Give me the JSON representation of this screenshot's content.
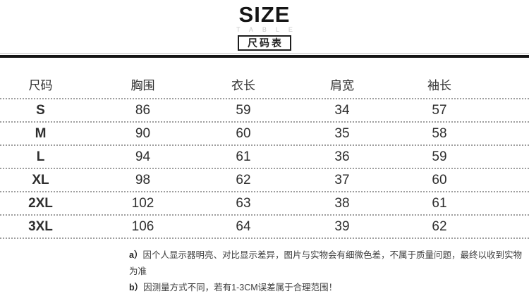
{
  "header": {
    "title": "SIZE",
    "subtitle": "TABLE",
    "badge": "尺码表"
  },
  "table": {
    "columns": [
      "尺码",
      "胸围",
      "衣长",
      "肩宽",
      "袖长"
    ],
    "rows": [
      [
        "S",
        "86",
        "59",
        "34",
        "57"
      ],
      [
        "M",
        "90",
        "60",
        "35",
        "58"
      ],
      [
        "L",
        "94",
        "61",
        "36",
        "59"
      ],
      [
        "XL",
        "98",
        "62",
        "37",
        "60"
      ],
      [
        "2XL",
        "102",
        "63",
        "38",
        "61"
      ],
      [
        "3XL",
        "106",
        "64",
        "39",
        "62"
      ]
    ]
  },
  "notes": [
    {
      "label": "a）",
      "text": "因个人显示器明亮、对比显示差异，图片与实物会有细微色差，不属于质量问题，最终以收到实物为准"
    },
    {
      "label": "b）",
      "text": "因测量方式不同，若有1-3CM误差属于合理范围！"
    }
  ],
  "colors": {
    "text": "#2e2e2e",
    "rule": "#151515",
    "dotted_separator": "#9e9e9e",
    "subtitle_gray": "#c9c9c9"
  }
}
